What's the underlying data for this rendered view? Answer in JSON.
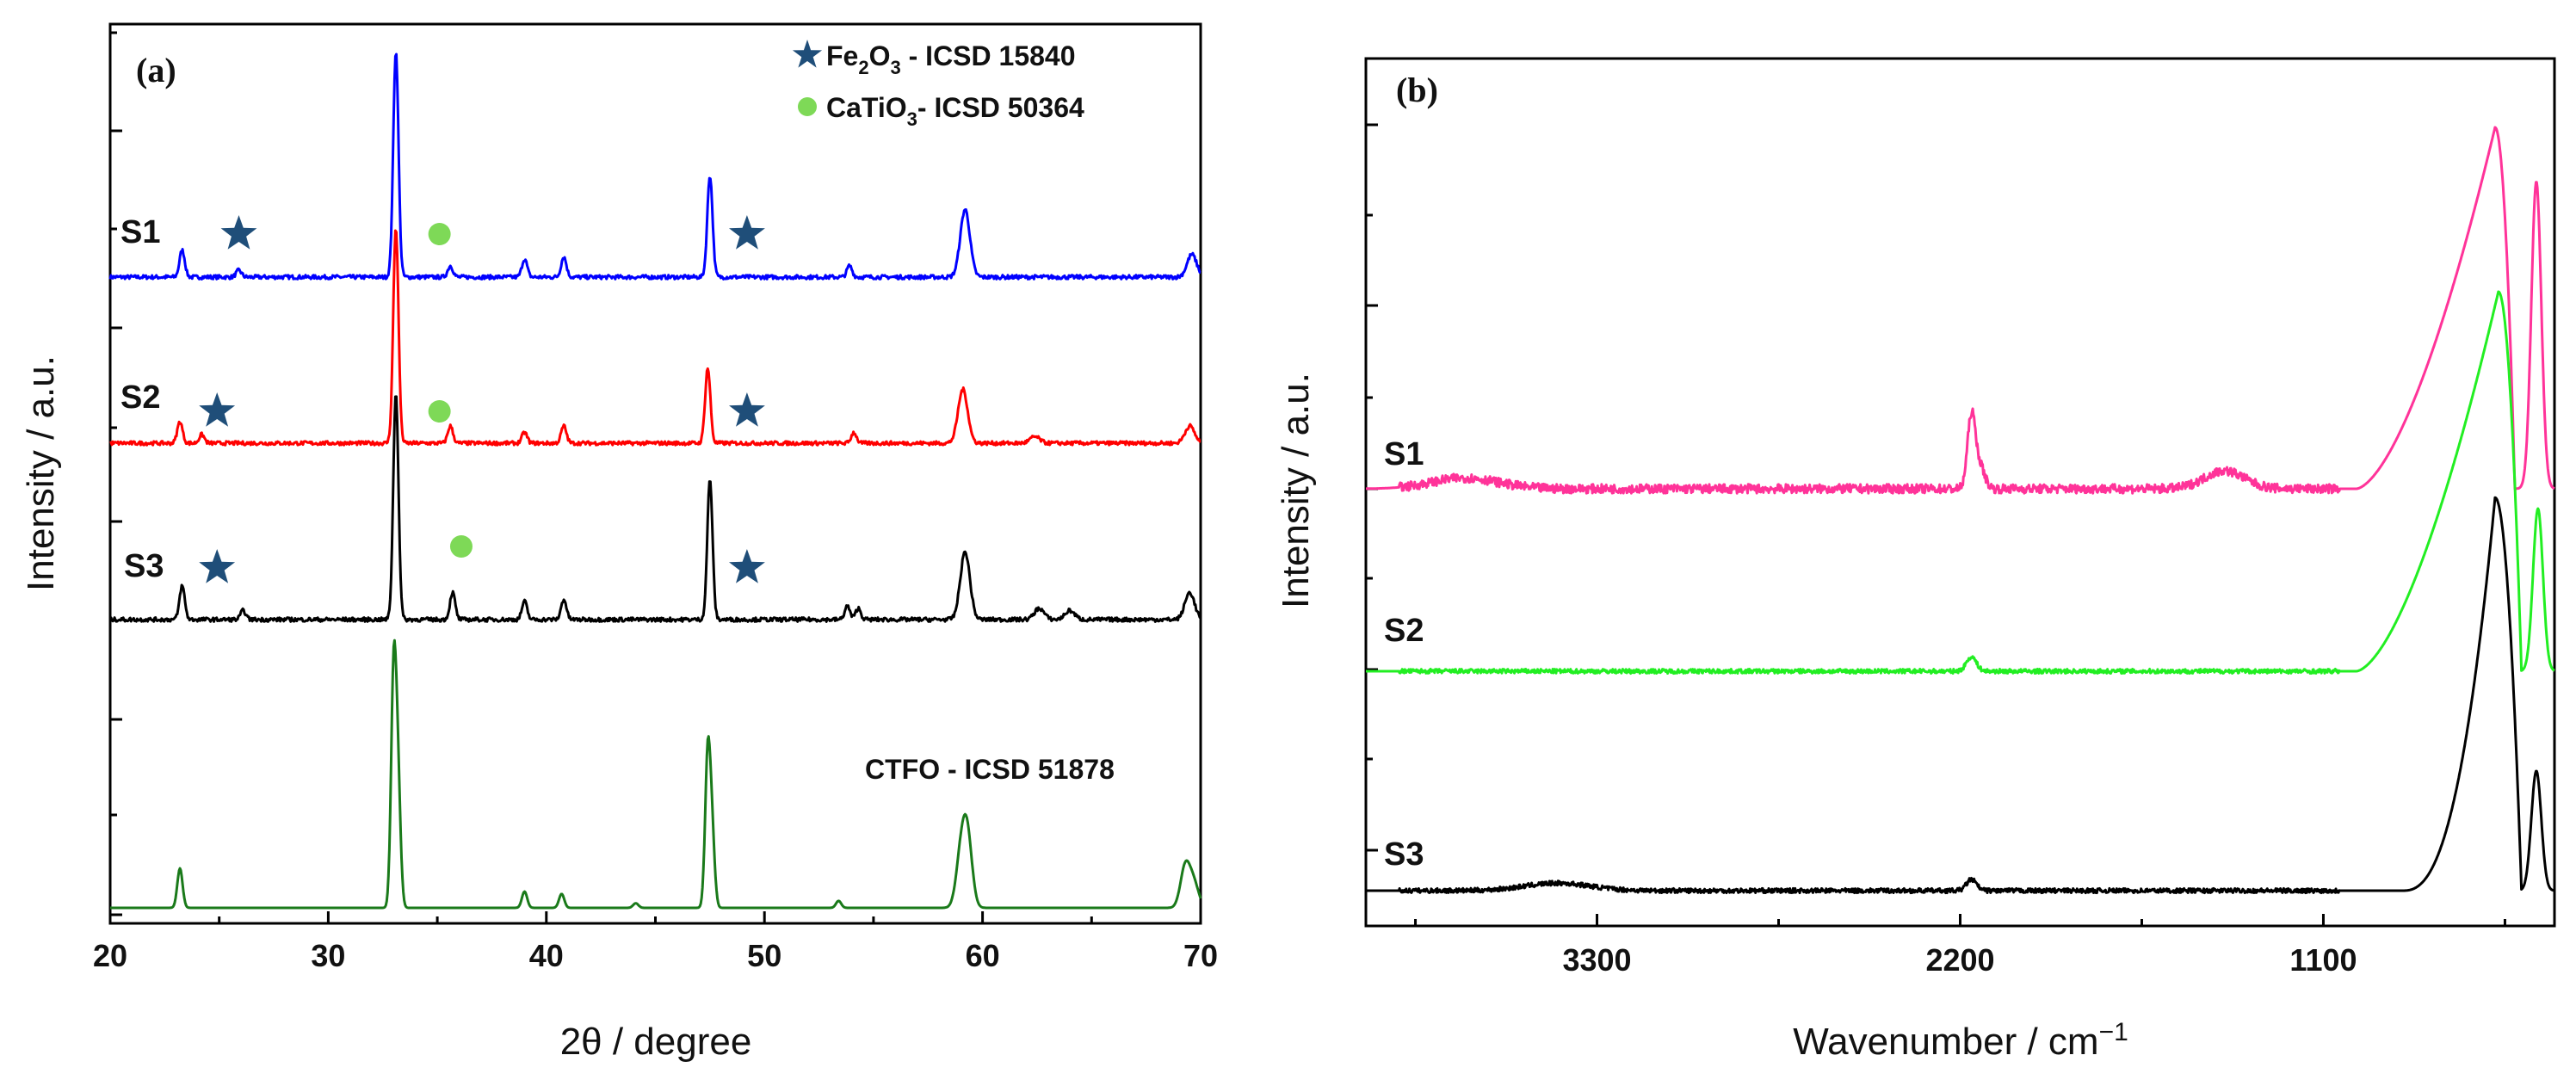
{
  "chart_data": [
    {
      "panel": "(a)",
      "type": "line",
      "xlabel": "2θ / degree",
      "ylabel": "Intensity / a.u.",
      "xlim": [
        20,
        70
      ],
      "xticks": [
        20,
        30,
        40,
        50,
        60,
        70
      ],
      "yticks_labeled": false,
      "legend": [
        {
          "label_main": "Fe",
          "sub1": "2",
          "mid": "O",
          "sub2": "3",
          "tail": " - ICSD 15840",
          "marker": "star",
          "color": "#1f4e79"
        },
        {
          "label_main": "CaTiO",
          "sub1": "3",
          "tail": "- ICSD 50364",
          "marker": "circle",
          "color": "#7ed957"
        }
      ],
      "reference_label": "CTFO - ICSD 51878",
      "series": [
        {
          "name": "S1",
          "color": "#0000ff",
          "baseline": 0.0,
          "peaks": [
            [
              23.3,
              0.12
            ],
            [
              25.9,
              0.03
            ],
            [
              33.1,
              1.0
            ],
            [
              35.6,
              0.05
            ],
            [
              39.0,
              0.08
            ],
            [
              40.8,
              0.09
            ],
            [
              47.5,
              0.45
            ],
            [
              53.9,
              0.05
            ],
            [
              59.2,
              0.3
            ],
            [
              69.6,
              0.1
            ]
          ],
          "markers": [
            {
              "type": "star",
              "x": 25.9
            },
            {
              "type": "circle",
              "x": 35.1
            },
            {
              "type": "star",
              "x": 49.2
            }
          ]
        },
        {
          "name": "S2",
          "color": "#ff0000",
          "baseline": 0.0,
          "peaks": [
            [
              23.2,
              0.1
            ],
            [
              24.2,
              0.04
            ],
            [
              33.1,
              1.0
            ],
            [
              35.6,
              0.08
            ],
            [
              39.0,
              0.05
            ],
            [
              40.8,
              0.08
            ],
            [
              47.4,
              0.35
            ],
            [
              54.1,
              0.05
            ],
            [
              59.1,
              0.25
            ],
            [
              62.4,
              0.03
            ],
            [
              69.5,
              0.08
            ]
          ],
          "markers": [
            {
              "type": "star",
              "x": 24.9
            },
            {
              "type": "circle",
              "x": 35.1
            },
            {
              "type": "star",
              "x": 49.2
            }
          ]
        },
        {
          "name": "S3",
          "color": "#000000",
          "baseline": 0.0,
          "peaks": [
            [
              23.3,
              0.15
            ],
            [
              26.1,
              0.04
            ],
            [
              33.1,
              1.0
            ],
            [
              35.7,
              0.12
            ],
            [
              39.0,
              0.08
            ],
            [
              40.8,
              0.09
            ],
            [
              47.5,
              0.62
            ],
            [
              53.8,
              0.06
            ],
            [
              54.3,
              0.05
            ],
            [
              59.2,
              0.3
            ],
            [
              62.6,
              0.05
            ],
            [
              64.0,
              0.04
            ],
            [
              69.5,
              0.12
            ]
          ],
          "markers": [
            {
              "type": "star",
              "x": 24.9
            },
            {
              "type": "circle",
              "x": 36.1
            },
            {
              "type": "star",
              "x": 49.2
            }
          ]
        },
        {
          "name": "CTFO",
          "color": "#1a7a1a",
          "baseline": 0.0,
          "peaks": [
            [
              23.2,
              0.17
            ],
            [
              33.0,
              1.0
            ],
            [
              33.2,
              0.5
            ],
            [
              39.0,
              0.07
            ],
            [
              40.7,
              0.06
            ],
            [
              44.1,
              0.02
            ],
            [
              47.4,
              0.65
            ],
            [
              47.6,
              0.3
            ],
            [
              53.4,
              0.03
            ],
            [
              59.0,
              0.2
            ],
            [
              59.3,
              0.3
            ],
            [
              69.3,
              0.18
            ],
            [
              69.7,
              0.1
            ]
          ]
        }
      ]
    },
    {
      "panel": "(b)",
      "type": "line",
      "xlabel": "Wavenumber / cm",
      "xlabel_sup": "−1",
      "ylabel": "Intensity / a.u.",
      "xlim": [
        4000,
        400
      ],
      "xticks": [
        3300,
        2200,
        1100
      ],
      "yticks_labeled": false,
      "series": [
        {
          "name": "S1",
          "color": "#ff3399",
          "features": [
            {
              "x": 2166,
              "h": 0.2,
              "w": 12
            },
            {
              "x": 2140,
              "h": 0.06,
              "w": 15
            },
            {
              "x": 1400,
              "h": 0.05,
              "w": 60
            },
            {
              "x": 3700,
              "h": 0.03,
              "w": 100
            }
          ],
          "band": {
            "start": 1000,
            "peak": 580,
            "top": 1.0,
            "drop": 520
          },
          "side_peak": {
            "x": 455,
            "h": 0.85
          }
        },
        {
          "name": "S2",
          "color": "#22ee22",
          "features": [
            {
              "x": 2166,
              "h": 0.04,
              "w": 15
            }
          ],
          "band": {
            "start": 1000,
            "peak": 570,
            "top": 1.05,
            "drop": 500
          },
          "side_peak": {
            "x": 450,
            "h": 0.45
          }
        },
        {
          "name": "S3",
          "color": "#000000",
          "features": [
            {
              "x": 2166,
              "h": 0.03,
              "w": 15
            },
            {
              "x": 3420,
              "h": 0.02,
              "w": 100
            }
          ],
          "band": {
            "start": 860,
            "peak": 580,
            "top": 1.05,
            "drop": 500
          },
          "side_peak": {
            "x": 455,
            "h": 0.32
          }
        }
      ]
    }
  ]
}
